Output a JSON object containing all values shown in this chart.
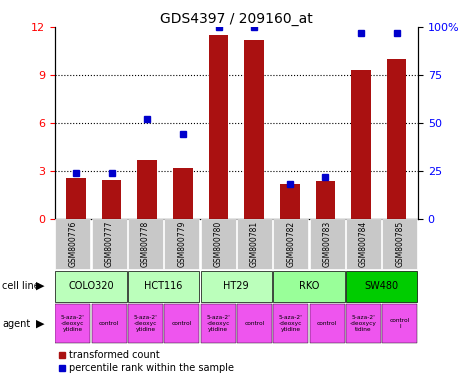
{
  "title": "GDS4397 / 209160_at",
  "samples": [
    "GSM800776",
    "GSM800777",
    "GSM800778",
    "GSM800779",
    "GSM800780",
    "GSM800781",
    "GSM800782",
    "GSM800783",
    "GSM800784",
    "GSM800785"
  ],
  "bar_values": [
    2.55,
    2.45,
    3.7,
    3.15,
    11.5,
    11.15,
    2.15,
    2.35,
    9.3,
    10.0
  ],
  "dot_pct": [
    24,
    24,
    52,
    44,
    100,
    100,
    18,
    22,
    97,
    97
  ],
  "ylim_left": [
    0,
    12
  ],
  "ylim_right": [
    0,
    100
  ],
  "yticks_left": [
    0,
    3,
    6,
    9,
    12
  ],
  "yticks_right": [
    0,
    25,
    50,
    75,
    100
  ],
  "ytick_labels_right": [
    "0",
    "25",
    "50",
    "75",
    "100%"
  ],
  "bar_color": "#aa1111",
  "dot_color": "#0000cc",
  "cell_lines": [
    {
      "name": "COLO320",
      "start": 0,
      "end": 2,
      "color": "#ccffcc"
    },
    {
      "name": "HCT116",
      "start": 2,
      "end": 4,
      "color": "#ccffcc"
    },
    {
      "name": "HT29",
      "start": 4,
      "end": 6,
      "color": "#ccffcc"
    },
    {
      "name": "RKO",
      "start": 6,
      "end": 8,
      "color": "#99ff99"
    },
    {
      "name": "SW480",
      "start": 8,
      "end": 10,
      "color": "#00dd00"
    }
  ],
  "agent_texts": [
    "5-aza-2'\n-deoxyc\nytidine",
    "control",
    "5-aza-2'\n-deoxyc\nytidine",
    "control",
    "5-aza-2'\n-deoxyc\nytidine",
    "control",
    "5-aza-2'\n-deoxyc\nytidine",
    "control",
    "5-aza-2'\n-deoxycy\ntidine",
    "control\nl"
  ],
  "agent_color": "#ee55ee",
  "legend_red": "transformed count",
  "legend_blue": "percentile rank within the sample",
  "cell_line_label": "cell line",
  "agent_label": "agent",
  "sample_bg_color": "#c8c8c8",
  "title_fontsize": 10
}
